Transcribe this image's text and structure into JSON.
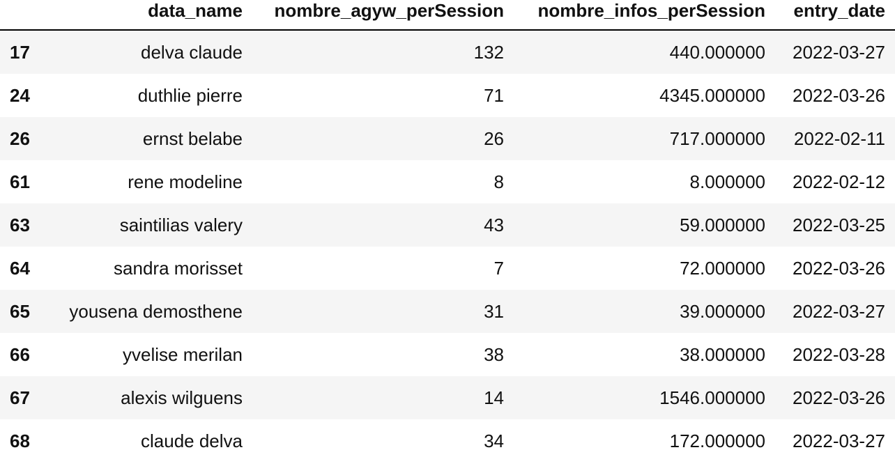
{
  "table": {
    "index_header": "",
    "headers": [
      "data_name",
      "nombre_agyw_perSession",
      "nombre_infos_perSession",
      "entry_date"
    ],
    "rows": [
      {
        "index": "17",
        "data_name": "delva claude",
        "agyw": "132",
        "infos": "440.000000",
        "date": "2022-03-27"
      },
      {
        "index": "24",
        "data_name": "duthlie pierre",
        "agyw": "71",
        "infos": "4345.000000",
        "date": "2022-03-26"
      },
      {
        "index": "26",
        "data_name": "ernst belabe",
        "agyw": "26",
        "infos": "717.000000",
        "date": "2022-02-11"
      },
      {
        "index": "61",
        "data_name": "rene modeline",
        "agyw": "8",
        "infos": "8.000000",
        "date": "2022-02-12"
      },
      {
        "index": "63",
        "data_name": "saintilias valery",
        "agyw": "43",
        "infos": "59.000000",
        "date": "2022-03-25"
      },
      {
        "index": "64",
        "data_name": "sandra morisset",
        "agyw": "7",
        "infos": "72.000000",
        "date": "2022-03-26"
      },
      {
        "index": "65",
        "data_name": "yousena demosthene",
        "agyw": "31",
        "infos": "39.000000",
        "date": "2022-03-27"
      },
      {
        "index": "66",
        "data_name": "yvelise merilan",
        "agyw": "38",
        "infos": "38.000000",
        "date": "2022-03-28"
      },
      {
        "index": "67",
        "data_name": "alexis wilguens",
        "agyw": "14",
        "infos": "1546.000000",
        "date": "2022-03-26"
      },
      {
        "index": "68",
        "data_name": "claude delva",
        "agyw": "34",
        "infos": "172.000000",
        "date": "2022-03-27"
      }
    ]
  }
}
